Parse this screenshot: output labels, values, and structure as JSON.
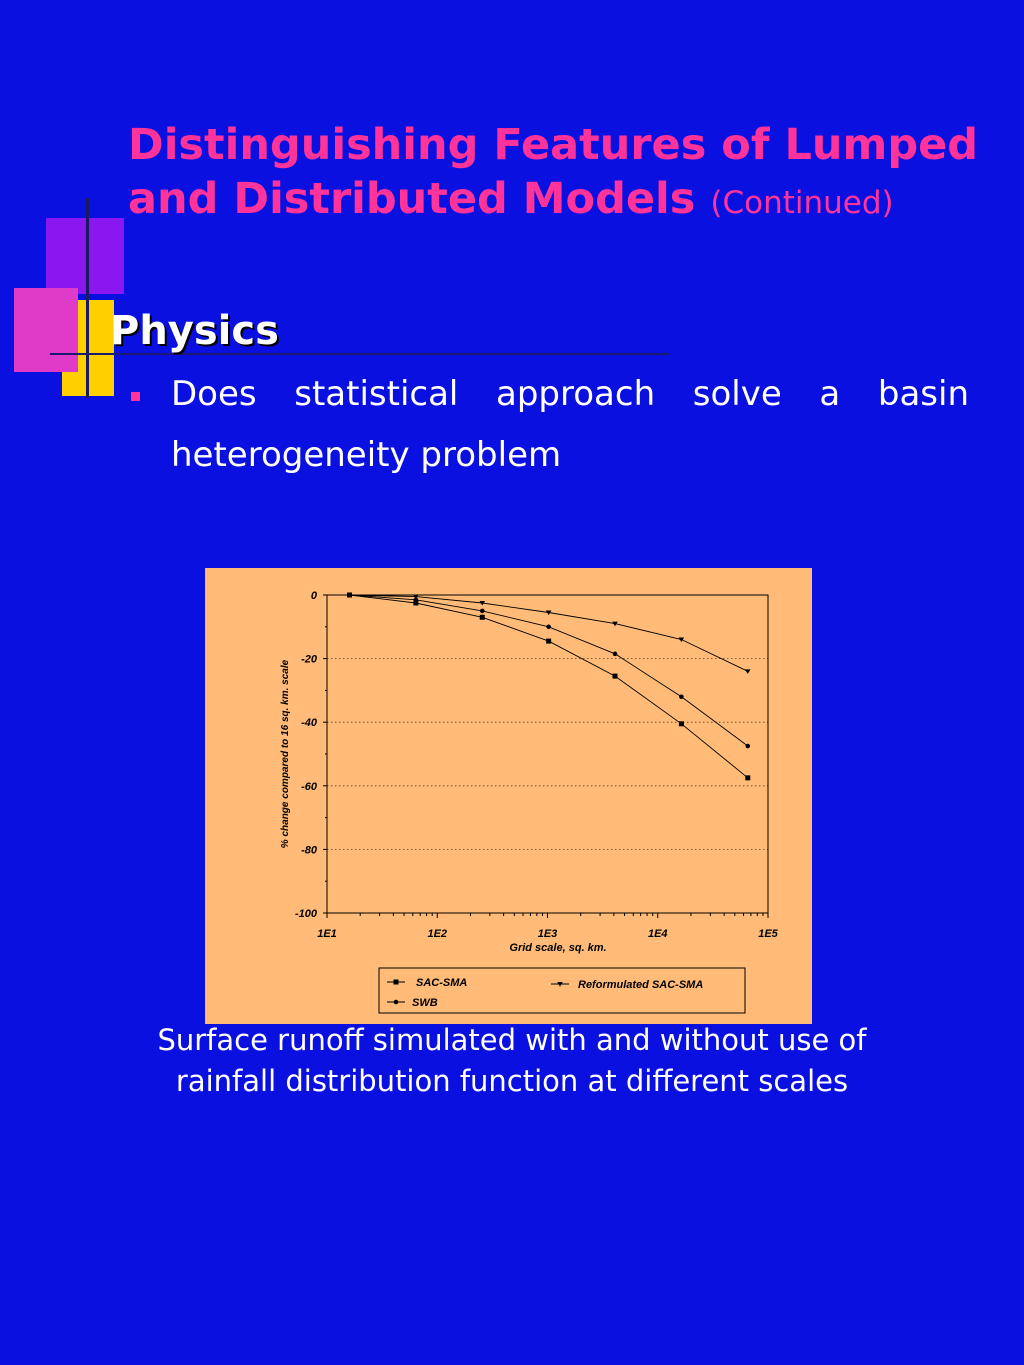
{
  "slide": {
    "title": "Distinguishing Features of Lumped and Distributed Models",
    "title_suffix": "(Continued)",
    "heading": "Physics",
    "bullet": "Does statistical approach solve a basin heterogeneity problem",
    "caption": "Surface runoff simulated with and without use of rainfall distribution function at different scales",
    "colors": {
      "background": "#0a10e0",
      "title": "#ff3399",
      "chart_background": "#ffbb77"
    }
  },
  "chart_data": {
    "type": "line",
    "title": "",
    "xlabel": "Grid scale, sq. km.",
    "ylabel": "% change compared to 16 sq. km. scale",
    "xscale": "log",
    "xlim": [
      10,
      100000
    ],
    "ylim": [
      -100,
      0
    ],
    "x_tick_labels": [
      "1E1",
      "1E2",
      "1E3",
      "1E4",
      "1E5"
    ],
    "y_tick_labels": [
      "0",
      "-20",
      "-40",
      "-60",
      "-80",
      "-100"
    ],
    "y_grid": "dotted",
    "legend_position": "bottom",
    "series": [
      {
        "name": "SAC-SMA",
        "marker": "square",
        "x": [
          16,
          64,
          256,
          1024,
          4096,
          16384,
          65536
        ],
        "y": [
          0,
          -2.5,
          -7,
          -14.5,
          -25.5,
          -40.5,
          -57.5
        ]
      },
      {
        "name": "SWB",
        "marker": "circle",
        "x": [
          16,
          64,
          256,
          1024,
          4096,
          16384,
          65536
        ],
        "y": [
          0,
          -1.5,
          -5,
          -10,
          -18.5,
          -32,
          -47.5
        ]
      },
      {
        "name": "Reformulated SAC-SMA",
        "marker": "triangle-down",
        "x": [
          16,
          64,
          256,
          1024,
          4096,
          16384,
          65536
        ],
        "y": [
          0,
          -0.5,
          -2.5,
          -5.5,
          -9,
          -14,
          -24
        ]
      }
    ]
  }
}
